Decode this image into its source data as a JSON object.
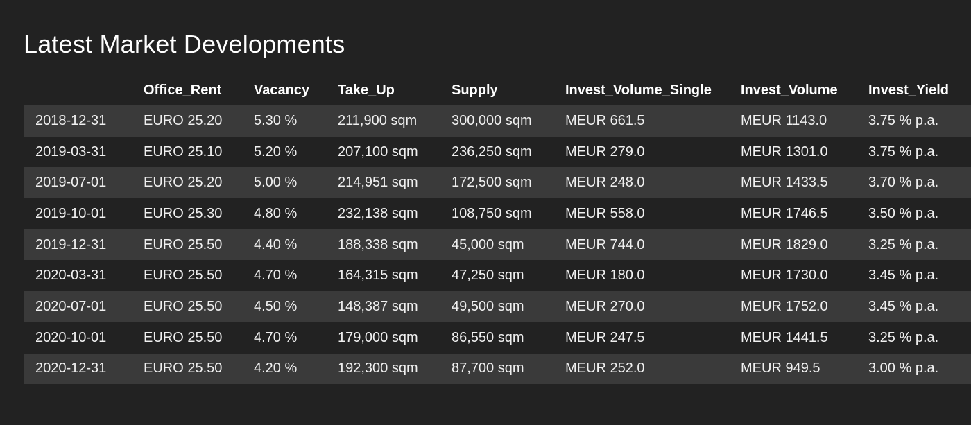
{
  "page": {
    "title": "Latest Market Developments"
  },
  "table": {
    "columns": [
      "",
      "Office_Rent",
      "Vacancy",
      "Take_Up",
      "Supply",
      "Invest_Volume_Single",
      "Invest_Volume",
      "Invest_Yield"
    ],
    "rows": [
      [
        "2018-12-31",
        "EURO 25.20",
        "5.30 %",
        "211,900 sqm",
        "300,000 sqm",
        "MEUR 661.5",
        "MEUR 1143.0",
        "3.75 % p.a."
      ],
      [
        "2019-03-31",
        "EURO 25.10",
        "5.20 %",
        "207,100 sqm",
        "236,250 sqm",
        "MEUR 279.0",
        "MEUR 1301.0",
        "3.75 % p.a."
      ],
      [
        "2019-07-01",
        "EURO 25.20",
        "5.00 %",
        "214,951 sqm",
        "172,500 sqm",
        "MEUR 248.0",
        "MEUR 1433.5",
        "3.70 % p.a."
      ],
      [
        "2019-10-01",
        "EURO 25.30",
        "4.80 %",
        "232,138 sqm",
        "108,750 sqm",
        "MEUR 558.0",
        "MEUR 1746.5",
        "3.50 % p.a."
      ],
      [
        "2019-12-31",
        "EURO 25.50",
        "4.40 %",
        "188,338 sqm",
        "45,000 sqm",
        "MEUR 744.0",
        "MEUR 1829.0",
        "3.25 % p.a."
      ],
      [
        "2020-03-31",
        "EURO 25.50",
        "4.70 %",
        "164,315 sqm",
        "47,250 sqm",
        "MEUR 180.0",
        "MEUR 1730.0",
        "3.45 % p.a."
      ],
      [
        "2020-07-01",
        "EURO 25.50",
        "4.50 %",
        "148,387 sqm",
        "49,500 sqm",
        "MEUR 270.0",
        "MEUR 1752.0",
        "3.45 % p.a."
      ],
      [
        "2020-10-01",
        "EURO 25.50",
        "4.70 %",
        "179,000 sqm",
        "86,550 sqm",
        "MEUR 247.5",
        "MEUR 1441.5",
        "3.25 % p.a."
      ],
      [
        "2020-12-31",
        "EURO 25.50",
        "4.20 %",
        "192,300 sqm",
        "87,700 sqm",
        "MEUR 252.0",
        "MEUR 949.5",
        "3.00 % p.a."
      ]
    ]
  },
  "colors": {
    "background": "#222222",
    "stripe": "#3a3a3a",
    "text": "#f0f0f0"
  }
}
